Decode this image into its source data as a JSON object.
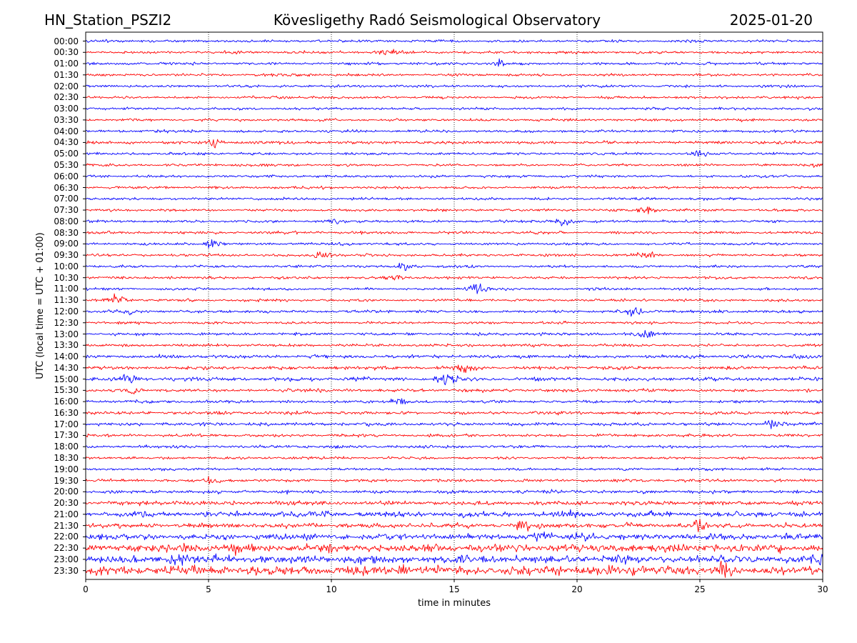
{
  "header": {
    "station": "HN_Station_PSZI2",
    "title": "Kövesligethy Radó Seismological Observatory",
    "date": "2025-01-20"
  },
  "chart_data": {
    "type": "line",
    "title": "Kövesligethy Radó Seismological Observatory",
    "xlabel": "time in minutes",
    "ylabel": "UTC (local time = UTC + 01:00)",
    "xlim": [
      0,
      30
    ],
    "x_ticks": [
      "0",
      "5",
      "10",
      "15",
      "20",
      "25",
      "30"
    ],
    "grid": "vertical dotted at 5-minute ticks",
    "series_colors": [
      "#0000ff",
      "#ff0000"
    ],
    "color_rule": "alternating per row, on-the-hour rows blue, half-hour rows red",
    "rows": [
      {
        "label": "00:00",
        "amplitude": 1,
        "events": []
      },
      {
        "label": "00:30",
        "amplitude": 1,
        "events": [
          [
            12.3,
            3
          ]
        ]
      },
      {
        "label": "01:00",
        "amplitude": 1,
        "events": [
          [
            16.7,
            3
          ]
        ]
      },
      {
        "label": "01:30",
        "amplitude": 1,
        "events": []
      },
      {
        "label": "02:00",
        "amplitude": 1,
        "events": []
      },
      {
        "label": "02:30",
        "amplitude": 1,
        "events": []
      },
      {
        "label": "03:00",
        "amplitude": 1,
        "events": []
      },
      {
        "label": "03:30",
        "amplitude": 1,
        "events": []
      },
      {
        "label": "04:00",
        "amplitude": 1,
        "events": []
      },
      {
        "label": "04:30",
        "amplitude": 1.2,
        "events": [
          [
            5.2,
            4
          ]
        ]
      },
      {
        "label": "05:00",
        "amplitude": 1,
        "events": [
          [
            25,
            2
          ]
        ]
      },
      {
        "label": "05:30",
        "amplitude": 1,
        "events": [
          [
            29.5,
            2
          ]
        ]
      },
      {
        "label": "06:00",
        "amplitude": 1,
        "events": []
      },
      {
        "label": "06:30",
        "amplitude": 1,
        "events": []
      },
      {
        "label": "07:00",
        "amplitude": 1,
        "events": []
      },
      {
        "label": "07:30",
        "amplitude": 1,
        "events": [
          [
            22.8,
            3
          ]
        ]
      },
      {
        "label": "08:00",
        "amplitude": 1,
        "events": [
          [
            10.2,
            3
          ],
          [
            19.4,
            3
          ]
        ]
      },
      {
        "label": "08:30",
        "amplitude": 1,
        "events": []
      },
      {
        "label": "09:00",
        "amplitude": 1,
        "events": [
          [
            5.2,
            3
          ]
        ]
      },
      {
        "label": "09:30",
        "amplitude": 1,
        "events": [
          [
            9.6,
            4
          ],
          [
            22.9,
            3
          ]
        ]
      },
      {
        "label": "10:00",
        "amplitude": 1,
        "events": [
          [
            13,
            3
          ]
        ]
      },
      {
        "label": "10:30",
        "amplitude": 1,
        "events": [
          [
            12.5,
            3
          ]
        ]
      },
      {
        "label": "11:00",
        "amplitude": 0.9,
        "events": [
          [
            15.9,
            6
          ]
        ]
      },
      {
        "label": "11:30",
        "amplitude": 1,
        "events": [
          [
            1.3,
            5
          ]
        ]
      },
      {
        "label": "12:00",
        "amplitude": 1.1,
        "events": [
          [
            1.8,
            3
          ],
          [
            22.3,
            3
          ]
        ]
      },
      {
        "label": "12:30",
        "amplitude": 1,
        "events": []
      },
      {
        "label": "13:00",
        "amplitude": 1.1,
        "events": [
          [
            22.8,
            3
          ]
        ]
      },
      {
        "label": "13:30",
        "amplitude": 1.1,
        "events": []
      },
      {
        "label": "14:00",
        "amplitude": 1.3,
        "events": [
          [
            29,
            3
          ]
        ]
      },
      {
        "label": "14:30",
        "amplitude": 1.3,
        "events": [
          [
            15.5,
            3
          ]
        ]
      },
      {
        "label": "15:00",
        "amplitude": 1.4,
        "events": [
          [
            14.7,
            6
          ],
          [
            1.7,
            3
          ]
        ]
      },
      {
        "label": "15:30",
        "amplitude": 1.2,
        "events": [
          [
            2,
            3
          ]
        ]
      },
      {
        "label": "16:00",
        "amplitude": 1.1,
        "events": [
          [
            12.8,
            3
          ]
        ]
      },
      {
        "label": "16:30",
        "amplitude": 1.2,
        "events": []
      },
      {
        "label": "17:00",
        "amplitude": 1.2,
        "events": [
          [
            28,
            4
          ]
        ]
      },
      {
        "label": "17:30",
        "amplitude": 1.1,
        "events": []
      },
      {
        "label": "18:00",
        "amplitude": 1.1,
        "events": []
      },
      {
        "label": "18:30",
        "amplitude": 1,
        "events": []
      },
      {
        "label": "19:00",
        "amplitude": 1,
        "events": []
      },
      {
        "label": "19:30",
        "amplitude": 1.1,
        "events": [
          [
            5.2,
            3
          ]
        ]
      },
      {
        "label": "20:00",
        "amplitude": 1.3,
        "events": []
      },
      {
        "label": "20:30",
        "amplitude": 1.6,
        "events": []
      },
      {
        "label": "21:00",
        "amplitude": 2,
        "events": [
          [
            19.8,
            3
          ]
        ]
      },
      {
        "label": "21:30",
        "amplitude": 1.8,
        "events": [
          [
            17.8,
            3
          ],
          [
            25,
            3
          ]
        ]
      },
      {
        "label": "22:00",
        "amplitude": 2.2,
        "events": [
          [
            18.5,
            3
          ],
          [
            20.3,
            3
          ]
        ]
      },
      {
        "label": "22:30",
        "amplitude": 3,
        "events": [
          [
            4.2,
            3
          ],
          [
            6.2,
            3
          ]
        ]
      },
      {
        "label": "23:00",
        "amplitude": 3,
        "events": [
          [
            3.8,
            3
          ],
          [
            29.9,
            3
          ]
        ]
      },
      {
        "label": "23:30",
        "amplitude": 3.5,
        "events": [
          [
            13,
            3
          ],
          [
            23.5,
            3
          ],
          [
            26,
            3
          ]
        ]
      }
    ]
  }
}
